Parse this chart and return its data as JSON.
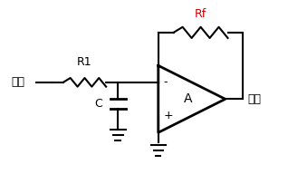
{
  "bg_color": "#ffffff",
  "line_color": "#000000",
  "rf_label_color": "#cc0000",
  "fig_width": 3.18,
  "fig_height": 1.92,
  "dpi": 100,
  "input_label": "输入",
  "output_label": "输出",
  "r1_label": "R1",
  "c_label": "C",
  "rf_label": "Rf",
  "a_label": "A",
  "minus_label": "-",
  "plus_label": "+"
}
